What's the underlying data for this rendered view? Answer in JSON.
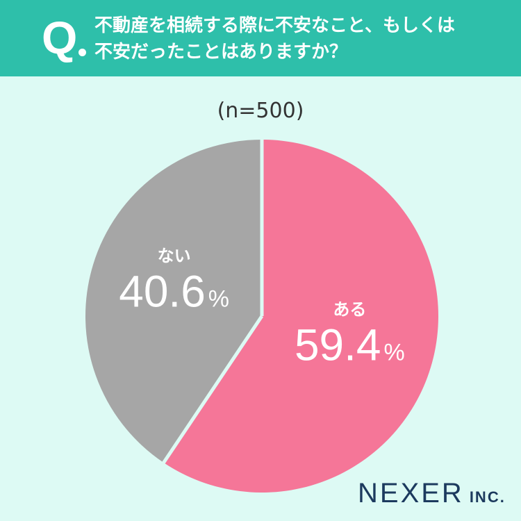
{
  "header": {
    "q_label": "Q",
    "question_line1": "不動産を相続する際に不安なこと、もしくは",
    "question_line2": "不安だったことはありますか？"
  },
  "sample_size": "(n=500)",
  "chart_data": {
    "type": "pie",
    "title": "不動産を相続する際に不安なこと、もしくは不安だったことはありますか？",
    "n": 500,
    "slices": [
      {
        "label": "ある",
        "value": 59.4,
        "display": "59.4",
        "color": "#f57698"
      },
      {
        "label": "ない",
        "value": 40.6,
        "display": "40.6",
        "color": "#a6a6a6"
      }
    ],
    "unit": "%",
    "start": "12 o'clock",
    "direction": "clockwise",
    "label_color": "#ffffff",
    "separator_color": "#ddfaf4"
  },
  "brand": {
    "name": "NEXER",
    "suffix": "INC."
  },
  "colors": {
    "header": "#2ebfaa",
    "background": "#ddfaf4",
    "logo": "#1c3a5e"
  }
}
